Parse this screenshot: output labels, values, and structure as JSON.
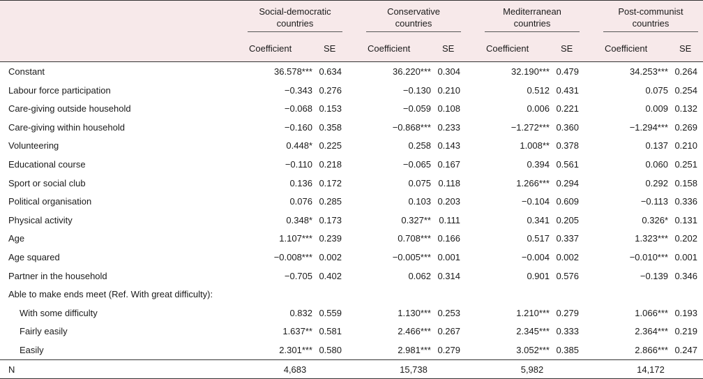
{
  "groups": [
    {
      "line1": "Social-democratic",
      "line2": "countries",
      "coef_header": "Coefficient",
      "se_header": "SE"
    },
    {
      "line1": "Conservative",
      "line2": "countries",
      "coef_header": "Coefficient",
      "se_header": "SE"
    },
    {
      "line1": "Mediterranean",
      "line2": "countries",
      "coef_header": "Coefficient",
      "se_header": "SE"
    },
    {
      "line1": "Post-communist",
      "line2": "countries",
      "coef_header": "Coefficient",
      "se_header": "SE"
    }
  ],
  "rows": [
    {
      "label": "Constant",
      "indent": false,
      "values": [
        "36.578***",
        "0.634",
        "36.220***",
        "0.304",
        "32.190***",
        "0.479",
        "34.253***",
        "0.264"
      ]
    },
    {
      "label": "Labour force participation",
      "indent": false,
      "values": [
        "−0.343",
        "0.276",
        "−0.130",
        "0.210",
        "0.512",
        "0.431",
        "0.075",
        "0.254"
      ]
    },
    {
      "label": "Care-giving outside household",
      "indent": false,
      "values": [
        "−0.068",
        "0.153",
        "−0.059",
        "0.108",
        "0.006",
        "0.221",
        "0.009",
        "0.132"
      ]
    },
    {
      "label": "Care-giving within household",
      "indent": false,
      "values": [
        "−0.160",
        "0.358",
        "−0.868***",
        "0.233",
        "−1.272***",
        "0.360",
        "−1.294***",
        "0.269"
      ]
    },
    {
      "label": "Volunteering",
      "indent": false,
      "values": [
        "0.448*",
        "0.225",
        "0.258",
        "0.143",
        "1.008**",
        "0.378",
        "0.137",
        "0.210"
      ]
    },
    {
      "label": "Educational course",
      "indent": false,
      "values": [
        "−0.110",
        "0.218",
        "−0.065",
        "0.167",
        "0.394",
        "0.561",
        "0.060",
        "0.251"
      ]
    },
    {
      "label": "Sport or social club",
      "indent": false,
      "values": [
        "0.136",
        "0.172",
        "0.075",
        "0.118",
        "1.266***",
        "0.294",
        "0.292",
        "0.158"
      ]
    },
    {
      "label": "Political organisation",
      "indent": false,
      "values": [
        "0.076",
        "0.285",
        "0.103",
        "0.203",
        "−0.104",
        "0.609",
        "−0.113",
        "0.336"
      ]
    },
    {
      "label": "Physical activity",
      "indent": false,
      "values": [
        "0.348*",
        "0.173",
        "0.327**",
        "0.111",
        "0.341",
        "0.205",
        "0.326*",
        "0.131"
      ]
    },
    {
      "label": "Age",
      "indent": false,
      "values": [
        "1.107***",
        "0.239",
        "0.708***",
        "0.166",
        "0.517",
        "0.337",
        "1.323***",
        "0.202"
      ]
    },
    {
      "label": "Age squared",
      "indent": false,
      "values": [
        "−0.008***",
        "0.002",
        "−0.005***",
        "0.001",
        "−0.004",
        "0.002",
        "−0.010***",
        "0.001"
      ]
    },
    {
      "label": "Partner in the household",
      "indent": false,
      "values": [
        "−0.705",
        "0.402",
        "0.062",
        "0.314",
        "0.901",
        "0.576",
        "−0.139",
        "0.346"
      ]
    },
    {
      "label": "Able to make ends meet (Ref. With great difficulty):",
      "indent": false,
      "values": [
        "",
        "",
        "",
        "",
        "",
        "",
        "",
        ""
      ]
    },
    {
      "label": "With some difficulty",
      "indent": true,
      "values": [
        "0.832",
        "0.559",
        "1.130***",
        "0.253",
        "1.210***",
        "0.279",
        "1.066***",
        "0.193"
      ]
    },
    {
      "label": "Fairly easily",
      "indent": true,
      "values": [
        "1.637**",
        "0.581",
        "2.466***",
        "0.267",
        "2.345***",
        "0.333",
        "2.364***",
        "0.219"
      ]
    },
    {
      "label": "Easily",
      "indent": true,
      "values": [
        "2.301***",
        "0.580",
        "2.981***",
        "0.279",
        "3.052***",
        "0.385",
        "2.866***",
        "0.247"
      ]
    }
  ],
  "n_row": {
    "label": "N",
    "values": [
      "4,683",
      "15,738",
      "5,982",
      "14,172"
    ]
  }
}
